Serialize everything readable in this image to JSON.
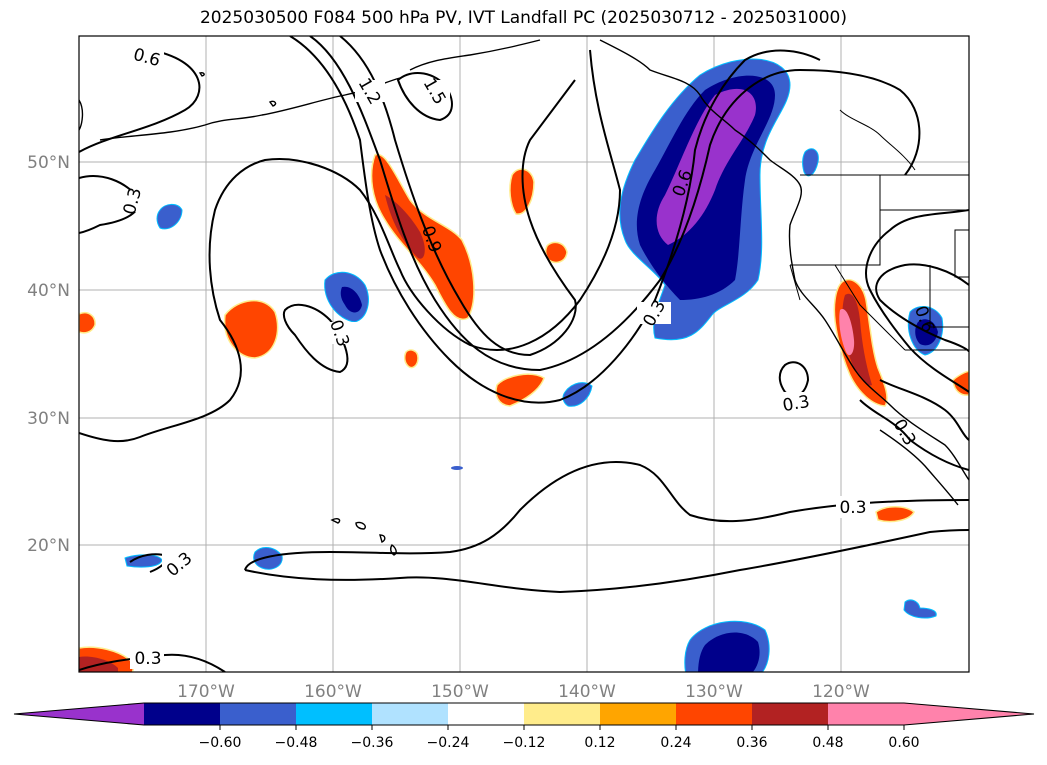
{
  "title": "2025030500 F084 500 hPa PV, IVT Landfall PC (2025030712 - 2025031000)",
  "map": {
    "lon_ticks": [
      "170°W",
      "160°W",
      "150°W",
      "140°W",
      "130°W",
      "120°W"
    ],
    "lat_ticks": [
      "50°N",
      "40°N",
      "30°N",
      "20°N"
    ],
    "contour_labels": [
      "0.6",
      "1.2",
      "1.5",
      "0.3",
      "0.9",
      "0.6",
      "0.3",
      "0.3",
      "0.3",
      "0.3",
      "0.3",
      "0.3",
      "0.6",
      "0.3"
    ],
    "gridlines": true,
    "features": [
      "coastlines",
      "us-state-borders",
      "pv-contours",
      "ivt-pc-shading"
    ]
  },
  "colorbar": {
    "ticks": [
      "−0.60",
      "−0.48",
      "−0.36",
      "−0.24",
      "−0.12",
      "0.12",
      "0.24",
      "0.36",
      "0.48",
      "0.60"
    ],
    "colors": [
      "#9932cc",
      "#00008b",
      "#3a5fcd",
      "#00bfff",
      "#b0e2ff",
      "#ffffff",
      "#ffec8b",
      "#ffa500",
      "#ff4500",
      "#b22222",
      "#ff82ab",
      "#ff82ab"
    ]
  }
}
